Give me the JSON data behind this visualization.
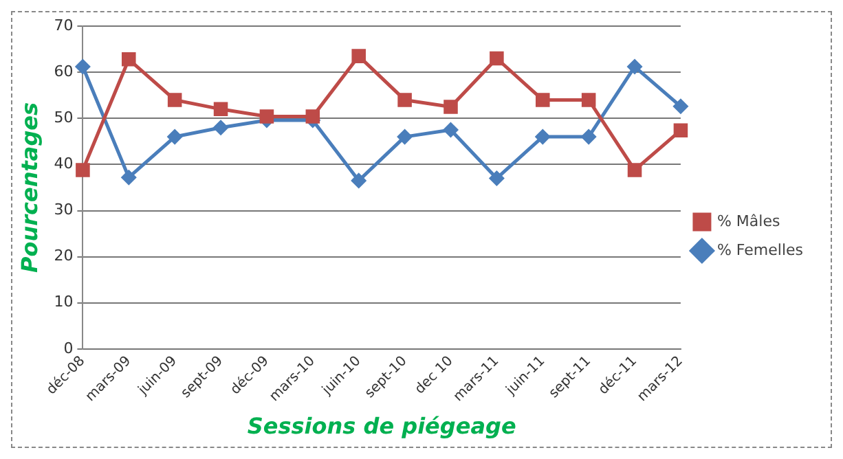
{
  "chart_data": {
    "type": "line",
    "xlabel": "Sessions de piégeage",
    "ylabel": "Pourcentages",
    "categories": [
      "déc-08",
      "mars-09",
      "juin-09",
      "sept-09",
      "déc-09",
      "mars-10",
      "juin-10",
      "sept-10",
      "dec 10",
      "mars-11",
      "juin-11",
      "sept-11",
      "déc-11",
      "mars-12"
    ],
    "series": [
      {
        "name": "% Femelles",
        "color": "#4a7ebb",
        "marker": "diamond",
        "values": [
          61.2,
          37.2,
          46,
          48,
          49.6,
          49.6,
          36.5,
          46,
          47.5,
          37,
          46,
          46,
          61.2,
          52.6
        ]
      },
      {
        "name": "% Mâles",
        "color": "#be4b48",
        "marker": "square",
        "values": [
          38.8,
          62.8,
          54,
          52,
          50.4,
          50.4,
          63.5,
          54,
          52.5,
          63,
          54,
          54,
          38.8,
          47.4
        ]
      }
    ],
    "ylim": [
      0,
      70
    ],
    "yticks": [
      0,
      10,
      20,
      30,
      40,
      50,
      60,
      70
    ],
    "grid": "y",
    "legend": "right"
  }
}
